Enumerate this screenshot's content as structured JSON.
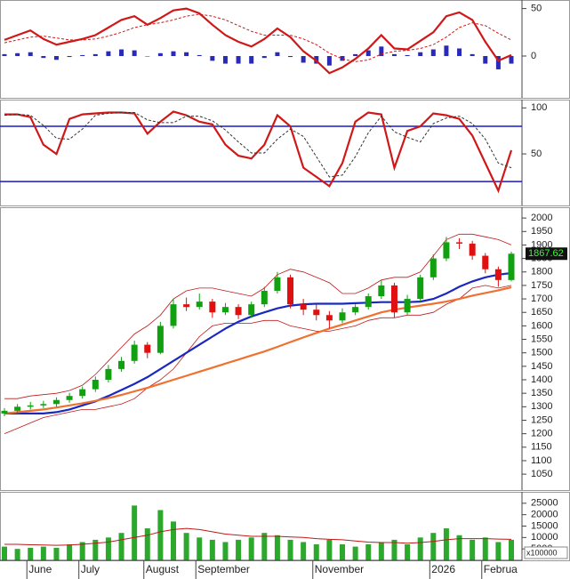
{
  "chart_data": [
    {
      "type": "macd",
      "ylim": [
        -44,
        59
      ],
      "yticks": [
        0,
        50
      ],
      "series": [
        {
          "color": "#d01818",
          "dash": false,
          "values": [
            17,
            22,
            27,
            18,
            12,
            15,
            18,
            22,
            30,
            38,
            42,
            33,
            40,
            48,
            50,
            45,
            33,
            22,
            15,
            10,
            18,
            29,
            20,
            5,
            -5,
            -18,
            -12,
            -3,
            8,
            22,
            8,
            7,
            16,
            25,
            42,
            46,
            38,
            15,
            -5,
            1
          ]
        },
        {
          "color": "#d01818",
          "dash": true,
          "values": [
            14,
            17,
            20,
            21,
            19,
            17,
            17,
            18,
            21,
            25,
            30,
            33,
            35,
            38,
            42,
            44,
            42,
            38,
            32,
            26,
            22,
            22,
            22,
            18,
            12,
            3,
            -3,
            -6,
            -4,
            2,
            5,
            6,
            8,
            12,
            20,
            30,
            35,
            32,
            24,
            17
          ]
        }
      ],
      "histogram": {
        "color": "#2a2ab8",
        "values": [
          2,
          3,
          4,
          -2,
          -4,
          -1,
          1,
          2,
          5,
          7,
          6,
          0,
          3,
          5,
          4,
          1,
          -5,
          -8,
          -8,
          -8,
          -2,
          4,
          -1,
          -7,
          -8,
          -10,
          -5,
          2,
          6,
          10,
          2,
          1,
          4,
          7,
          11,
          8,
          2,
          -8,
          -14,
          -8
        ]
      }
    },
    {
      "type": "stochastic",
      "ylim": [
        -6,
        109
      ],
      "yticks": [
        50,
        100
      ],
      "levels": [
        20,
        80
      ],
      "level_color": "#1a1ac8",
      "series": [
        {
          "color": "#d01818",
          "dash": false,
          "values": [
            93,
            93,
            90,
            60,
            50,
            88,
            93,
            94,
            95,
            95,
            94,
            72,
            85,
            96,
            92,
            85,
            82,
            60,
            48,
            45,
            60,
            92,
            80,
            35,
            25,
            15,
            40,
            85,
            95,
            93,
            35,
            75,
            80,
            94,
            92,
            88,
            70,
            40,
            10,
            54
          ]
        },
        {
          "color": "#333333",
          "dash": true,
          "values": [
            92,
            93,
            92,
            81,
            67,
            66,
            77,
            92,
            94,
            95,
            95,
            87,
            84,
            84,
            91,
            91,
            86,
            76,
            63,
            51,
            51,
            66,
            77,
            69,
            47,
            25,
            27,
            47,
            73,
            91,
            74,
            68,
            63,
            83,
            89,
            91,
            83,
            66,
            40,
            35
          ]
        }
      ]
    },
    {
      "type": "candlestick",
      "ylim": [
        991,
        2040
      ],
      "yticks": [
        1050,
        1100,
        1150,
        1200,
        1250,
        1300,
        1350,
        1400,
        1450,
        1500,
        1550,
        1600,
        1650,
        1700,
        1750,
        1800,
        1850,
        1900,
        1950,
        2000
      ],
      "up_color": "#10a010",
      "down_color": "#e01010",
      "last_label": true,
      "open": [
        1275,
        1285,
        1300,
        1305,
        1310,
        1325,
        1340,
        1365,
        1400,
        1440,
        1470,
        1530,
        1500,
        1600,
        1680,
        1670,
        1690,
        1650,
        1670,
        1640,
        1680,
        1730,
        1780,
        1680,
        1660,
        1640,
        1620,
        1650,
        1670,
        1710,
        1750,
        1650,
        1700,
        1780,
        1850,
        1910,
        1905,
        1860,
        1810,
        1770
      ],
      "high": [
        1295,
        1310,
        1318,
        1322,
        1335,
        1352,
        1375,
        1412,
        1455,
        1485,
        1545,
        1540,
        1615,
        1700,
        1705,
        1720,
        1700,
        1685,
        1680,
        1690,
        1745,
        1800,
        1790,
        1700,
        1680,
        1655,
        1665,
        1680,
        1720,
        1770,
        1760,
        1715,
        1790,
        1865,
        1930,
        1925,
        1915,
        1870,
        1820,
        1875
      ],
      "low": [
        1265,
        1275,
        1290,
        1295,
        1300,
        1315,
        1330,
        1355,
        1390,
        1430,
        1460,
        1480,
        1495,
        1590,
        1655,
        1660,
        1630,
        1640,
        1625,
        1630,
        1670,
        1720,
        1665,
        1640,
        1620,
        1590,
        1610,
        1640,
        1660,
        1700,
        1630,
        1640,
        1690,
        1770,
        1840,
        1885,
        1845,
        1795,
        1745,
        1765
      ],
      "close": [
        1285,
        1300,
        1305,
        1310,
        1325,
        1340,
        1365,
        1400,
        1440,
        1470,
        1530,
        1500,
        1600,
        1680,
        1670,
        1690,
        1650,
        1670,
        1640,
        1680,
        1730,
        1780,
        1680,
        1660,
        1640,
        1620,
        1650,
        1670,
        1710,
        1750,
        1650,
        1700,
        1780,
        1850,
        1910,
        1905,
        1860,
        1810,
        1770,
        1867.62
      ],
      "moving_averages": [
        {
          "color": "#1a28c0",
          "values": [
            1275,
            1275,
            1275,
            1275,
            1280,
            1290,
            1305,
            1320,
            1340,
            1362,
            1385,
            1410,
            1440,
            1470,
            1500,
            1530,
            1560,
            1590,
            1615,
            1635,
            1650,
            1665,
            1675,
            1680,
            1682,
            1682,
            1682,
            1684,
            1686,
            1688,
            1688,
            1688,
            1690,
            1700,
            1720,
            1745,
            1765,
            1780,
            1790,
            1796
          ]
        },
        {
          "color": "#f07030",
          "values": [
            1275,
            1280,
            1285,
            1290,
            1297,
            1305,
            1313,
            1322,
            1332,
            1344,
            1357,
            1370,
            1385,
            1400,
            1415,
            1430,
            1445,
            1460,
            1475,
            1490,
            1505,
            1522,
            1540,
            1557,
            1574,
            1590,
            1605,
            1620,
            1635,
            1650,
            1660,
            1668,
            1675,
            1682,
            1690,
            1700,
            1712,
            1722,
            1732,
            1743
          ]
        }
      ],
      "bands": [
        {
          "color": "#c01818",
          "values": [
            1330,
            1330,
            1340,
            1345,
            1350,
            1360,
            1380,
            1420,
            1470,
            1520,
            1570,
            1600,
            1640,
            1700,
            1730,
            1740,
            1740,
            1730,
            1720,
            1710,
            1740,
            1790,
            1810,
            1800,
            1780,
            1760,
            1720,
            1720,
            1740,
            1770,
            1780,
            1780,
            1800,
            1860,
            1920,
            1940,
            1940,
            1930,
            1920,
            1900
          ]
        },
        {
          "color": "#c01818",
          "values": [
            1200,
            1220,
            1240,
            1260,
            1270,
            1280,
            1290,
            1290,
            1300,
            1310,
            1330,
            1370,
            1400,
            1440,
            1500,
            1560,
            1600,
            1610,
            1610,
            1610,
            1620,
            1620,
            1600,
            1590,
            1580,
            1580,
            1590,
            1600,
            1620,
            1630,
            1630,
            1640,
            1640,
            1650,
            1680,
            1700,
            1740,
            1750,
            1740,
            1750
          ]
        }
      ]
    },
    {
      "type": "volume",
      "ylim": [
        0,
        30000
      ],
      "yticks": [
        5000,
        10000,
        15000,
        20000,
        25000
      ],
      "unit_label": "x100000",
      "color": "#2ca82c",
      "categories": [
        null,
        null,
        "June",
        null,
        null,
        null,
        "July",
        null,
        null,
        null,
        null,
        "August",
        null,
        null,
        null,
        "September",
        null,
        null,
        null,
        null,
        null,
        null,
        null,
        null,
        "November",
        null,
        null,
        null,
        null,
        null,
        null,
        null,
        null,
        "2026",
        null,
        null,
        null,
        "Februa",
        null,
        null
      ],
      "values": [
        6000,
        5000,
        5500,
        6000,
        5500,
        7000,
        8000,
        9000,
        10000,
        12000,
        24000,
        14000,
        22000,
        17000,
        12000,
        10000,
        9000,
        8000,
        9000,
        10000,
        12000,
        11000,
        9000,
        8000,
        7000,
        9000,
        7000,
        6000,
        7000,
        8000,
        9000,
        7000,
        10000,
        12000,
        14000,
        11000,
        9000,
        10000,
        8000,
        9000
      ],
      "ma": {
        "color": "#c01818",
        "values": [
          7000,
          7000,
          6800,
          6700,
          6600,
          6700,
          7000,
          7500,
          8000,
          9000,
          10000,
          11000,
          12500,
          13500,
          14000,
          13500,
          12500,
          11500,
          11000,
          10500,
          10500,
          10500,
          10200,
          10000,
          9500,
          9200,
          9000,
          8500,
          8000,
          7800,
          7800,
          7500,
          7800,
          8300,
          9000,
          9500,
          9500,
          9500,
          9300,
          9200
        ]
      }
    }
  ]
}
